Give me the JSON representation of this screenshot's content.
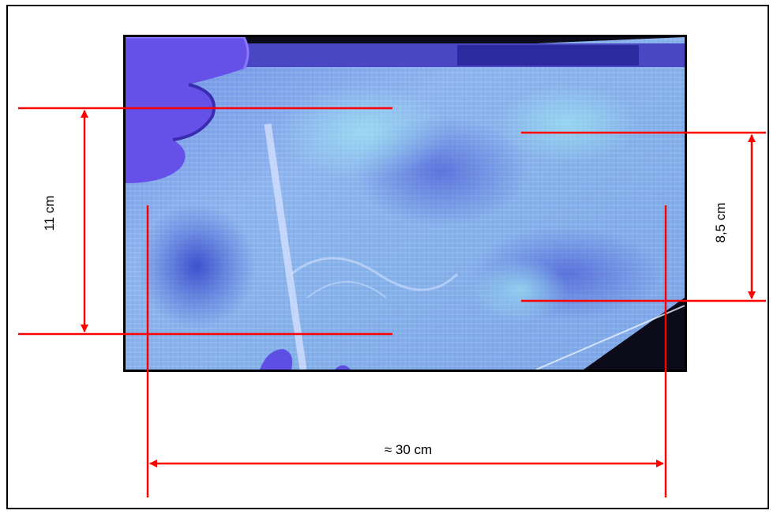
{
  "labels": {
    "height_left": "11 cm",
    "height_right": "8,5 cm",
    "width": "≈ 30 cm"
  },
  "colors": {
    "dimension_line": "#ff0000",
    "photo_border": "#000000",
    "frame_border": "#000000"
  }
}
